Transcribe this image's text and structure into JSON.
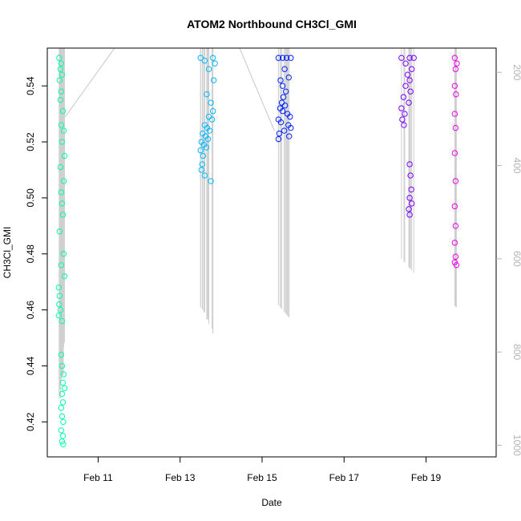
{
  "chart_data": {
    "type": "scatter",
    "title": "ATOM2 Northbound CH3Cl_GMI",
    "xlabel": "Date",
    "ylabel": "CH3Cl_GMI",
    "x_range_days": [
      9.76,
      20.71
    ],
    "x_ticks": [
      {
        "label": "Feb 11",
        "day": 11
      },
      {
        "label": "Feb 13",
        "day": 13
      },
      {
        "label": "Feb 15",
        "day": 15
      },
      {
        "label": "Feb 17",
        "day": 17
      },
      {
        "label": "Feb 19",
        "day": 19
      }
    ],
    "ylim": [
      0.4075,
      0.5535
    ],
    "y_ticks": [
      "0.42",
      "0.44",
      "0.46",
      "0.48",
      "0.50",
      "0.52",
      "0.54"
    ],
    "secondary_axis": {
      "position": "right",
      "reversed": true,
      "range": [
        1025,
        148
      ],
      "ticks": [
        "200",
        "400",
        "600",
        "800",
        "1000"
      ]
    },
    "grid": false,
    "legend": "none",
    "series": [
      {
        "flight_day": 10.2,
        "color": "#00ffaa",
        "points": [
          {
            "x": 10.05,
            "y": 0.55,
            "p": 900
          },
          {
            "x": 10.1,
            "y": 0.548,
            "p": 880
          },
          {
            "x": 10.08,
            "y": 0.546,
            "p": 900
          },
          {
            "x": 10.12,
            "y": 0.544,
            "p": 850
          },
          {
            "x": 10.06,
            "y": 0.542,
            "p": 880
          },
          {
            "x": 10.1,
            "y": 0.538,
            "p": 860
          },
          {
            "x": 10.08,
            "y": 0.535,
            "p": 880
          },
          {
            "x": 10.14,
            "y": 0.531,
            "p": 840
          },
          {
            "x": 10.1,
            "y": 0.526,
            "p": 860
          },
          {
            "x": 10.16,
            "y": 0.524,
            "p": 820
          },
          {
            "x": 10.12,
            "y": 0.52,
            "p": 850
          },
          {
            "x": 10.18,
            "y": 0.515,
            "p": 820
          },
          {
            "x": 10.08,
            "y": 0.511,
            "p": 840
          },
          {
            "x": 10.16,
            "y": 0.506,
            "p": 810
          },
          {
            "x": 10.1,
            "y": 0.502,
            "p": 830
          },
          {
            "x": 10.12,
            "y": 0.498,
            "p": 800
          },
          {
            "x": 10.14,
            "y": 0.494,
            "p": 800
          },
          {
            "x": 10.06,
            "y": 0.488,
            "p": 810
          },
          {
            "x": 10.16,
            "y": 0.48,
            "p": 790
          },
          {
            "x": 10.1,
            "y": 0.476,
            "p": 800
          },
          {
            "x": 10.18,
            "y": 0.472,
            "p": 780
          },
          {
            "x": 10.04,
            "y": 0.468,
            "p": 800
          },
          {
            "x": 10.06,
            "y": 0.465,
            "p": 790
          },
          {
            "x": 10.05,
            "y": 0.462,
            "p": 800
          },
          {
            "x": 10.08,
            "y": 0.46,
            "p": 790
          },
          {
            "x": 10.04,
            "y": 0.458,
            "p": 800
          },
          {
            "x": 10.12,
            "y": 0.456,
            "p": 780
          },
          {
            "x": 10.1,
            "y": 0.444,
            "p": 850
          },
          {
            "x": 10.12,
            "y": 0.44,
            "p": 850
          },
          {
            "x": 10.16,
            "y": 0.437,
            "p": 850
          },
          {
            "x": 10.14,
            "y": 0.434,
            "p": 850
          },
          {
            "x": 10.18,
            "y": 0.432,
            "p": 850
          },
          {
            "x": 10.12,
            "y": 0.43,
            "p": 850
          },
          {
            "x": 10.14,
            "y": 0.427,
            "p": 850
          },
          {
            "x": 10.1,
            "y": 0.425,
            "p": 850
          },
          {
            "x": 10.12,
            "y": 0.422,
            "p": 850
          },
          {
            "x": 10.15,
            "y": 0.42,
            "p": 850
          },
          {
            "x": 10.1,
            "y": 0.417,
            "p": 850
          },
          {
            "x": 10.14,
            "y": 0.415,
            "p": 850
          },
          {
            "x": 10.12,
            "y": 0.413,
            "p": 850
          },
          {
            "x": 10.15,
            "y": 0.412,
            "p": 850
          }
        ]
      },
      {
        "flight_day": 13.6,
        "color": "#00b8ff",
        "points": [
          {
            "x": 13.5,
            "y": 0.55,
            "p": 700
          },
          {
            "x": 13.6,
            "y": 0.549,
            "p": 720
          },
          {
            "x": 13.8,
            "y": 0.55,
            "p": 760
          },
          {
            "x": 13.85,
            "y": 0.548,
            "p": 760
          },
          {
            "x": 13.7,
            "y": 0.546,
            "p": 740
          },
          {
            "x": 13.82,
            "y": 0.542,
            "p": 760
          },
          {
            "x": 13.65,
            "y": 0.537,
            "p": 730
          },
          {
            "x": 13.75,
            "y": 0.534,
            "p": 750
          },
          {
            "x": 13.8,
            "y": 0.531,
            "p": 760
          },
          {
            "x": 13.7,
            "y": 0.529,
            "p": 740
          },
          {
            "x": 13.78,
            "y": 0.528,
            "p": 750
          },
          {
            "x": 13.6,
            "y": 0.526,
            "p": 720
          },
          {
            "x": 13.66,
            "y": 0.525,
            "p": 730
          },
          {
            "x": 13.72,
            "y": 0.524,
            "p": 740
          },
          {
            "x": 13.55,
            "y": 0.523,
            "p": 710
          },
          {
            "x": 13.62,
            "y": 0.522,
            "p": 720
          },
          {
            "x": 13.68,
            "y": 0.521,
            "p": 730
          },
          {
            "x": 13.52,
            "y": 0.52,
            "p": 710
          },
          {
            "x": 13.58,
            "y": 0.519,
            "p": 715
          },
          {
            "x": 13.64,
            "y": 0.518,
            "p": 725
          },
          {
            "x": 13.5,
            "y": 0.517,
            "p": 705
          },
          {
            "x": 13.56,
            "y": 0.515,
            "p": 710
          },
          {
            "x": 13.54,
            "y": 0.512,
            "p": 708
          },
          {
            "x": 13.52,
            "y": 0.51,
            "p": 705
          },
          {
            "x": 13.6,
            "y": 0.508,
            "p": 715
          },
          {
            "x": 13.75,
            "y": 0.506,
            "p": 745
          }
        ]
      },
      {
        "flight_day": 15.5,
        "color": "#0022ff",
        "points": [
          {
            "x": 15.4,
            "y": 0.55,
            "p": 700
          },
          {
            "x": 15.5,
            "y": 0.55,
            "p": 710
          },
          {
            "x": 15.6,
            "y": 0.55,
            "p": 720
          },
          {
            "x": 15.7,
            "y": 0.55,
            "p": 730
          },
          {
            "x": 15.55,
            "y": 0.546,
            "p": 715
          },
          {
            "x": 15.65,
            "y": 0.543,
            "p": 725
          },
          {
            "x": 15.45,
            "y": 0.542,
            "p": 705
          },
          {
            "x": 15.5,
            "y": 0.54,
            "p": 710
          },
          {
            "x": 15.58,
            "y": 0.538,
            "p": 718
          },
          {
            "x": 15.52,
            "y": 0.536,
            "p": 712
          },
          {
            "x": 15.48,
            "y": 0.534,
            "p": 708
          },
          {
            "x": 15.56,
            "y": 0.533,
            "p": 716
          },
          {
            "x": 15.44,
            "y": 0.532,
            "p": 704
          },
          {
            "x": 15.5,
            "y": 0.531,
            "p": 710
          },
          {
            "x": 15.62,
            "y": 0.53,
            "p": 722
          },
          {
            "x": 15.68,
            "y": 0.529,
            "p": 728
          },
          {
            "x": 15.4,
            "y": 0.528,
            "p": 700
          },
          {
            "x": 15.46,
            "y": 0.527,
            "p": 706
          },
          {
            "x": 15.64,
            "y": 0.526,
            "p": 724
          },
          {
            "x": 15.7,
            "y": 0.525,
            "p": 730
          },
          {
            "x": 15.54,
            "y": 0.524,
            "p": 714
          },
          {
            "x": 15.42,
            "y": 0.523,
            "p": 702
          },
          {
            "x": 15.66,
            "y": 0.522,
            "p": 726
          },
          {
            "x": 15.4,
            "y": 0.521,
            "p": 700
          }
        ]
      },
      {
        "flight_day": 18.6,
        "color": "#7a00ff",
        "points": [
          {
            "x": 18.4,
            "y": 0.55,
            "p": 600
          },
          {
            "x": 18.6,
            "y": 0.55,
            "p": 620
          },
          {
            "x": 18.7,
            "y": 0.55,
            "p": 630
          },
          {
            "x": 18.5,
            "y": 0.548,
            "p": 610
          },
          {
            "x": 18.65,
            "y": 0.546,
            "p": 625
          },
          {
            "x": 18.55,
            "y": 0.544,
            "p": 615
          },
          {
            "x": 18.6,
            "y": 0.542,
            "p": 620
          },
          {
            "x": 18.5,
            "y": 0.54,
            "p": 610
          },
          {
            "x": 18.62,
            "y": 0.538,
            "p": 622
          },
          {
            "x": 18.45,
            "y": 0.536,
            "p": 605
          },
          {
            "x": 18.58,
            "y": 0.534,
            "p": 618
          },
          {
            "x": 18.4,
            "y": 0.532,
            "p": 600
          },
          {
            "x": 18.48,
            "y": 0.53,
            "p": 608
          },
          {
            "x": 18.42,
            "y": 0.528,
            "p": 602
          },
          {
            "x": 18.46,
            "y": 0.526,
            "p": 606
          },
          {
            "x": 18.6,
            "y": 0.512,
            "p": 620
          },
          {
            "x": 18.62,
            "y": 0.508,
            "p": 622
          },
          {
            "x": 18.64,
            "y": 0.503,
            "p": 624
          },
          {
            "x": 18.6,
            "y": 0.5,
            "p": 620
          },
          {
            "x": 18.65,
            "y": 0.498,
            "p": 625
          },
          {
            "x": 18.58,
            "y": 0.496,
            "p": 618
          },
          {
            "x": 18.6,
            "y": 0.494,
            "p": 620
          }
        ]
      },
      {
        "flight_day": 19.7,
        "color": "#ee00ee",
        "points": [
          {
            "x": 19.7,
            "y": 0.55,
            "p": 700
          },
          {
            "x": 19.75,
            "y": 0.548,
            "p": 705
          },
          {
            "x": 19.72,
            "y": 0.546,
            "p": 702
          },
          {
            "x": 19.7,
            "y": 0.54,
            "p": 700
          },
          {
            "x": 19.73,
            "y": 0.537,
            "p": 703
          },
          {
            "x": 19.7,
            "y": 0.53,
            "p": 700
          },
          {
            "x": 19.72,
            "y": 0.525,
            "p": 702
          },
          {
            "x": 19.7,
            "y": 0.516,
            "p": 700
          },
          {
            "x": 19.72,
            "y": 0.506,
            "p": 702
          },
          {
            "x": 19.7,
            "y": 0.497,
            "p": 700
          },
          {
            "x": 19.72,
            "y": 0.49,
            "p": 702
          },
          {
            "x": 19.7,
            "y": 0.484,
            "p": 700
          },
          {
            "x": 19.72,
            "y": 0.479,
            "p": 702
          },
          {
            "x": 19.7,
            "y": 0.477,
            "p": 700
          },
          {
            "x": 19.74,
            "y": 0.476,
            "p": 704
          }
        ]
      }
    ],
    "track_line": [
      {
        "x": 10.2,
        "y": 0.529
      },
      {
        "x": 11.4,
        "y": 0.5535
      },
      {
        "x": 14.45,
        "y": 0.5535
      },
      {
        "x": 15.3,
        "y": 0.524
      }
    ]
  }
}
